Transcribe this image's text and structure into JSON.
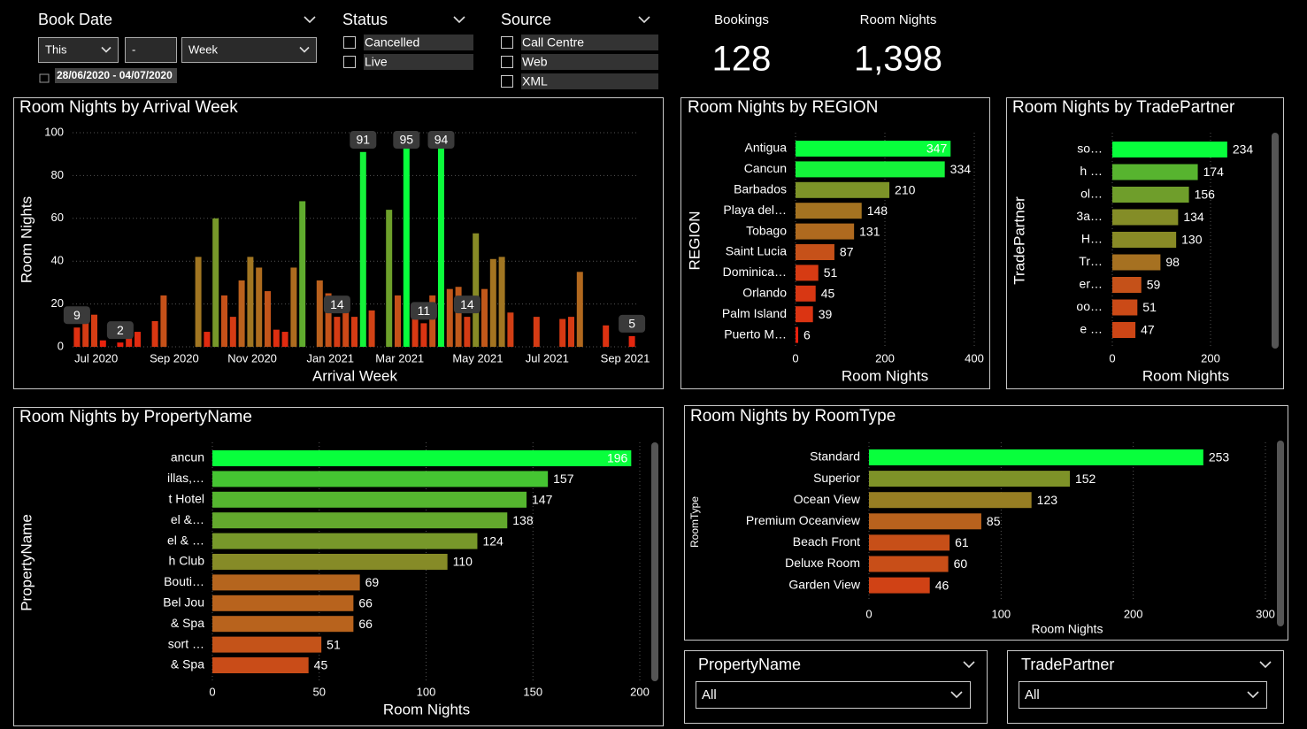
{
  "filters": {
    "book_date": {
      "title": "Book Date",
      "options": [
        "This",
        "-",
        "Week"
      ],
      "range": "28/06/2020 - 04/07/2020"
    },
    "status": {
      "title": "Status",
      "items": [
        "Cancelled",
        "Live"
      ]
    },
    "source": {
      "title": "Source",
      "items": [
        "Call Centre",
        "Web",
        "XML"
      ]
    }
  },
  "cards": [
    {
      "label": "Bookings",
      "value": 128
    },
    {
      "label": "Room Nights",
      "value": 1398,
      "value_label": "1,398"
    }
  ],
  "bottom_filters": [
    {
      "title": "PropertyName",
      "selected": "All"
    },
    {
      "title": "TradePartner",
      "selected": "All"
    }
  ],
  "chart_data": [
    {
      "type": "bar",
      "title": "Room Nights by Arrival Week",
      "xlabel": "Arrival Week",
      "ylabel": "Room Nights",
      "categories": [
        null,
        "Jul 2020",
        null,
        null,
        null,
        null,
        null,
        null,
        null,
        null,
        "Sep 2020",
        null,
        null,
        null,
        null,
        null,
        null,
        null,
        null,
        "Nov 2020",
        null,
        null,
        null,
        null,
        null,
        null,
        null,
        null,
        "Jan 2021",
        null,
        null,
        null,
        null,
        null,
        null,
        null,
        "Mar 2021",
        null,
        null,
        null,
        null,
        null,
        null,
        null,
        null,
        "May 2021",
        null,
        null,
        null,
        null,
        null,
        null,
        null,
        "Jul 2021",
        null,
        null,
        null,
        null,
        null,
        null,
        null,
        null,
        "Sep 2021",
        null,
        null
      ],
      "values": [
        9,
        14,
        15,
        3,
        null,
        2,
        7,
        7,
        null,
        12,
        24,
        null,
        null,
        null,
        42,
        7,
        60,
        24,
        14,
        31,
        42,
        37,
        26,
        8,
        7,
        37,
        68,
        null,
        31,
        25,
        14,
        20,
        14,
        91,
        17,
        null,
        64,
        24,
        95,
        13,
        11,
        24,
        94,
        27,
        28,
        14,
        53,
        27,
        41,
        42,
        16,
        null,
        null,
        14,
        null,
        null,
        13,
        14,
        35,
        null,
        null,
        10,
        null,
        null,
        5
      ],
      "value_labels": [
        "9",
        null,
        null,
        null,
        null,
        "2",
        null,
        null,
        null,
        null,
        null,
        null,
        null,
        null,
        null,
        null,
        null,
        null,
        null,
        null,
        null,
        null,
        null,
        null,
        null,
        null,
        null,
        null,
        null,
        null,
        "14",
        null,
        null,
        "91",
        null,
        null,
        null,
        null,
        "95",
        null,
        "11",
        null,
        "94",
        null,
        null,
        "14",
        null,
        null,
        null,
        null,
        null,
        null,
        null,
        null,
        null,
        null,
        null,
        null,
        null,
        null,
        null,
        null,
        null,
        null,
        "5"
      ],
      "ylim": [
        0,
        100
      ],
      "yticks": [
        0,
        20,
        40,
        60,
        80,
        100
      ],
      "grid": true,
      "color_scale": [
        "#ec1c0c",
        "#b9621d",
        "#6f9e2b",
        "#08ff3c"
      ]
    },
    {
      "type": "hbar",
      "title": "Room Nights by REGION",
      "xlabel": "Room Nights",
      "ylabel": "REGION",
      "categories": [
        "Antigua",
        "Cancun",
        "Barbados",
        "Playa del…",
        "Tobago",
        "Saint Lucia",
        "Dominica…",
        "Orlando",
        "Palm Island",
        "Puerto M…"
      ],
      "values": [
        347,
        334,
        210,
        148,
        131,
        87,
        51,
        45,
        39,
        6
      ],
      "xlim": [
        0,
        400
      ],
      "xticks": [
        0,
        200,
        400
      ],
      "grid": true,
      "color_scale": [
        "#ec1c0c",
        "#b9621d",
        "#6f9e2b",
        "#08ff3c"
      ]
    },
    {
      "type": "hbar",
      "title": "Room Nights by TradePartner",
      "xlabel": "Room Nights",
      "ylabel": "TradePartner",
      "categories": [
        "so…",
        "h …",
        "ol…",
        "3a…",
        "H…",
        "Tr…",
        "er…",
        "oo…",
        "e …"
      ],
      "values": [
        234,
        174,
        156,
        134,
        130,
        98,
        59,
        51,
        47
      ],
      "xlim": [
        0,
        300
      ],
      "xticks": [
        0,
        200
      ],
      "grid": true,
      "color_scale": [
        "#ec1c0c",
        "#b9621d",
        "#6f9e2b",
        "#08ff3c"
      ]
    },
    {
      "type": "hbar",
      "title": "Room Nights by PropertyName",
      "xlabel": "Room Nights",
      "ylabel": "PropertyName",
      "categories": [
        "ancun",
        "illas,…",
        "t Hotel",
        "el &…",
        "el & …",
        "h Club",
        "Bouti…",
        "Bel Jou",
        "& Spa",
        "sort …",
        "& Spa"
      ],
      "values": [
        196,
        157,
        147,
        138,
        124,
        110,
        69,
        66,
        66,
        51,
        45
      ],
      "xlim": [
        0,
        200
      ],
      "xticks": [
        0,
        50,
        100,
        150,
        200
      ],
      "grid": true,
      "color_scale": [
        "#ec1c0c",
        "#b9621d",
        "#6f9e2b",
        "#08ff3c"
      ]
    },
    {
      "type": "hbar",
      "title": "Room Nights by RoomType",
      "xlabel": "Room Nights",
      "ylabel": "RoomType",
      "categories": [
        "Standard",
        "Superior",
        "Ocean View",
        "Premium Oceanview",
        "Beach Front",
        "Deluxe Room",
        "Garden View"
      ],
      "values": [
        253,
        152,
        123,
        85,
        61,
        60,
        46
      ],
      "xlim": [
        0,
        300
      ],
      "xticks": [
        0,
        100,
        200,
        300
      ],
      "grid": true,
      "color_scale": [
        "#ec1c0c",
        "#b9621d",
        "#6f9e2b",
        "#08ff3c"
      ]
    }
  ]
}
